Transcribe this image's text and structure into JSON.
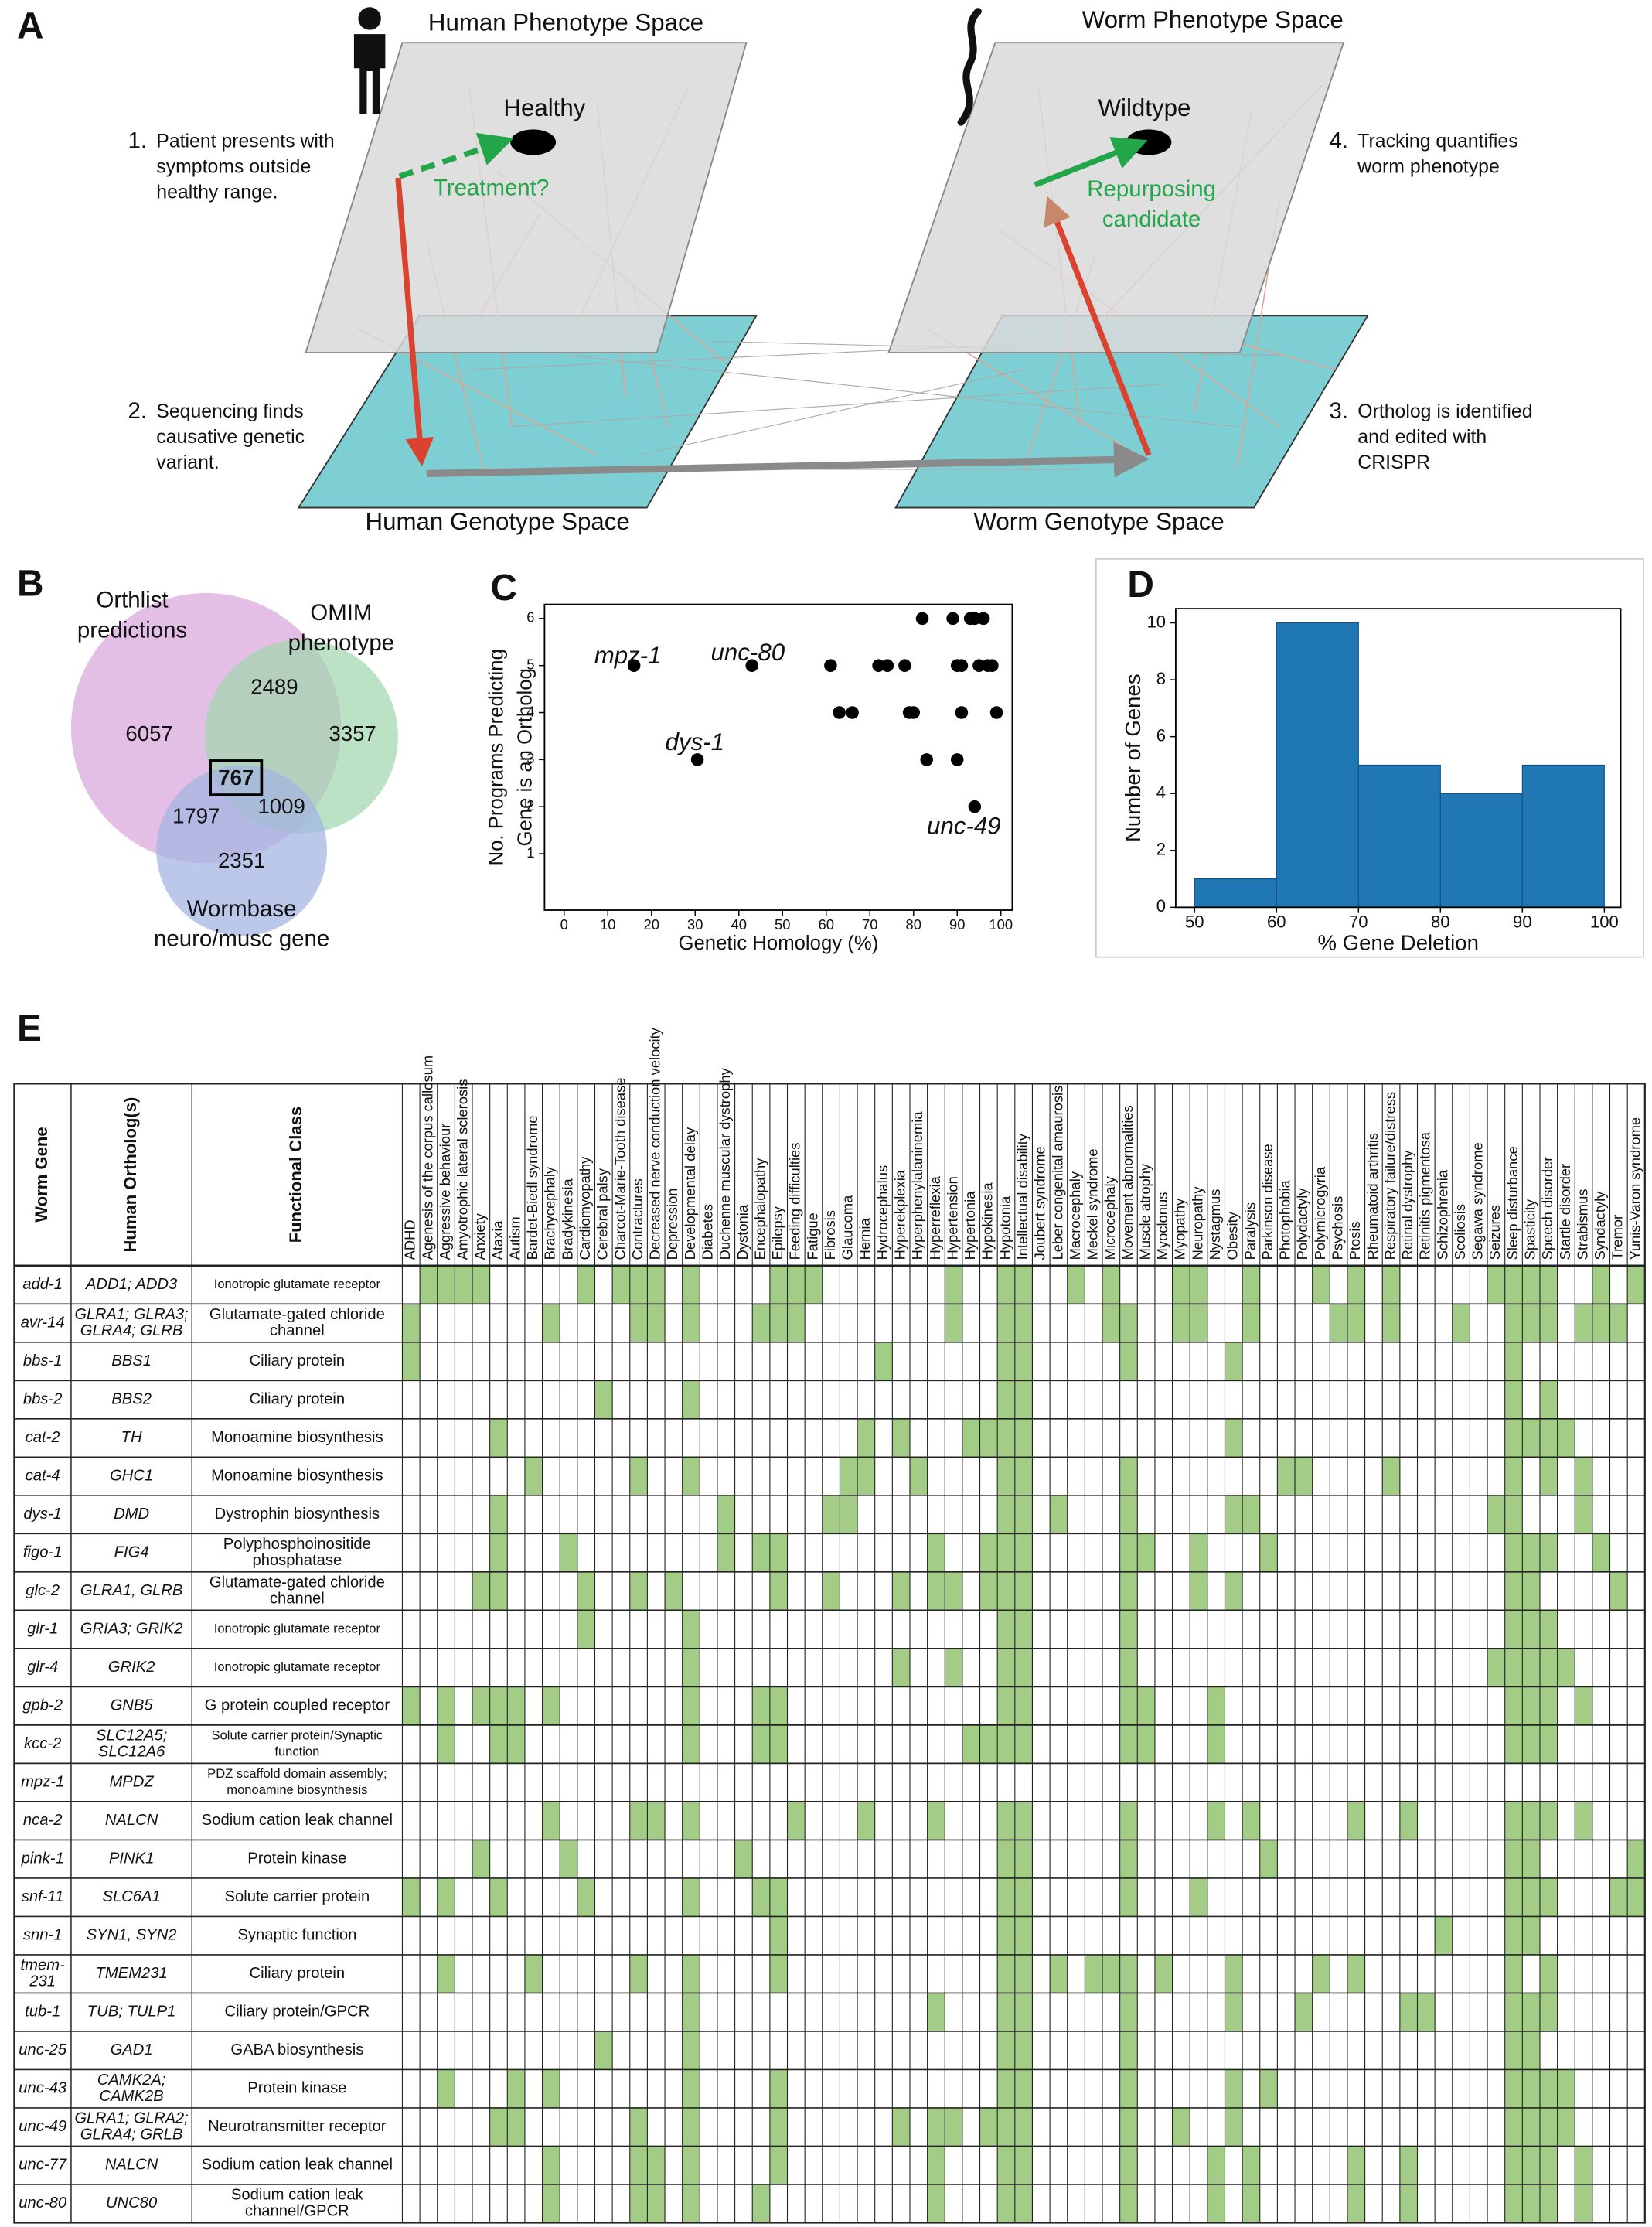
{
  "panel_labels": [
    "A",
    "B",
    "C",
    "D",
    "E"
  ],
  "panel_a": {
    "human_phenotype_space": "Human Phenotype Space",
    "worm_phenotype_space": "Worm Phenotype Space",
    "healthy": "Healthy",
    "wildtype": "Wildtype",
    "treatment": "Treatment?",
    "repurposing": [
      "Repurposing",
      "candidate"
    ],
    "human_genotype_space": "Human Genotype Space",
    "worm_genotype_space": "Worm Genotype Space",
    "steps": [
      {
        "number": "1.",
        "lines": [
          "Patient presents with",
          "symptoms outside",
          "healthy range."
        ]
      },
      {
        "number": "2.",
        "lines": [
          "Sequencing finds",
          "causative genetic",
          "variant."
        ]
      },
      {
        "number": "3.",
        "lines": [
          "Ortholog is identified",
          "and edited with",
          "CRISPR"
        ]
      },
      {
        "number": "4.",
        "lines": [
          "Tracking quantifies",
          "worm phenotype"
        ]
      }
    ]
  },
  "venn": {
    "sets": [
      {
        "label": [
          "Orthlist",
          "predictions"
        ]
      },
      {
        "label": [
          "OMIM",
          "phenotype"
        ]
      },
      {
        "label": [
          "Wormbase",
          "neuro/musc gene"
        ]
      }
    ],
    "regions": [
      6057,
      2489,
      3357,
      767,
      1797,
      1009,
      2351
    ]
  },
  "chart_data": [
    {
      "type": "scatter",
      "xlabel": "Genetic Homology (%)",
      "ylabel": [
        "No. Programs Predicting",
        "Gene is an Ortholog"
      ],
      "x": [
        16,
        30.5,
        43,
        61,
        63,
        66,
        72,
        74,
        78,
        79,
        80,
        82,
        83,
        89,
        90,
        90,
        91,
        91,
        93,
        94,
        94,
        95,
        96,
        97,
        98,
        99
      ],
      "values": [
        5,
        3,
        5,
        5,
        4,
        4,
        5,
        5,
        5,
        4,
        4,
        6,
        3,
        6,
        3,
        5,
        4,
        5,
        6,
        6,
        2,
        5,
        6,
        5,
        5,
        4
      ],
      "color": "#000000",
      "annotations": [
        "mpz-1",
        "unc-80",
        "dys-1",
        "unc-49"
      ],
      "xlim": [
        -4.5,
        102.6
      ],
      "ylim": [
        -0.2,
        6.3
      ],
      "xticks": [
        0,
        10,
        20,
        30,
        40,
        50,
        60,
        70,
        80,
        90,
        100
      ],
      "yticks": [
        1,
        2,
        3,
        4,
        5,
        6
      ]
    },
    {
      "type": "histogram",
      "xlabel": "% Gene Deletion",
      "ylabel": "Number of Genes",
      "bins": [
        50,
        60,
        70,
        80,
        90,
        100
      ],
      "values": [
        1,
        10,
        5,
        4,
        5
      ],
      "color": "#1f77b4",
      "xlim": [
        47.7,
        102
      ],
      "ylim": [
        0,
        10.5
      ],
      "xticks": [
        50,
        60,
        70,
        80,
        90,
        100
      ],
      "yticks": [
        0,
        2,
        4,
        6,
        8,
        10
      ]
    }
  ],
  "table": {
    "headers": [
      "Worm Gene",
      "Human Ortholog(s)",
      "Functional Class"
    ],
    "cell_color": "#a3cc86",
    "phenotypes": [
      "ADHD",
      "Agenesis of the corpus callosum",
      "Aggressive behaviour",
      "Amyotrophic lateral sclerosis",
      "Anxiety",
      "Ataxia",
      "Autism",
      "Bardet-Biedl syndrome",
      "Brachycephaly",
      "Bradykinesia",
      "Cardiomyopathy",
      "Cerebral palsy",
      "Charcot-Marie-Tooth disease",
      "Contractures",
      "Decreased nerve conduction velocity",
      "Depression",
      "Developmental delay",
      "Diabetes",
      "Duchenne muscular dystrophy",
      "Dystonia",
      "Encephalopathy",
      "Epilepsy",
      "Feeding difficulties",
      "Fatigue",
      "Fibrosis",
      "Glaucoma",
      "Hernia",
      "Hydrocephalus",
      "Hyperekplexia",
      "Hyperphenylalaninemia",
      "Hyperreflexia",
      "Hypertension",
      "Hypertonia",
      "Hypokinesia",
      "Hypotonia",
      "Intellectual disability",
      "Joubert syndrome",
      "Leber congenital amaurosis",
      "Macrocephaly",
      "Meckel syndrome",
      "Microcephaly",
      "Movement abnormalities",
      "Muscle atrophy",
      "Myoclonus",
      "Myopathy",
      "Neuropathy",
      "Nystagmus",
      "Obesity",
      "Paralysis",
      "Parkinson disease",
      "Photophobia",
      "Polydactyly",
      "Polymicrogyria",
      "Psychosis",
      "Ptosis",
      "Rheumatoid arthritis",
      "Respiratory failure/distress",
      "Retinal dystrophy",
      "Retinitis pigmentosa",
      "Schizophrenia",
      "Scoliosis",
      "Segawa syndrome",
      "Seizures",
      "Sleep disturbance",
      "Spasticity",
      "Speech disorder",
      "Startle disorder",
      "Strabismus",
      "Syndactyly",
      "Tremor",
      "Yunis-Varon syndrome"
    ],
    "rows": [
      {
        "gene": [
          "add-1"
        ],
        "orthologs": [
          "ADD1; ADD3"
        ],
        "class": [
          "Ionotropic glutamate receptor"
        ],
        "hits": [
          1,
          2,
          3,
          4,
          10,
          12,
          13,
          14,
          16,
          21,
          22,
          23,
          31,
          34,
          35,
          38,
          40,
          44,
          45,
          48,
          52,
          54,
          56,
          62,
          63,
          64,
          65,
          68,
          70
        ]
      },
      {
        "gene": [
          "avr-14"
        ],
        "orthologs": [
          "GLRA1; GLRA3;",
          "GLRA4; GLRB"
        ],
        "class": [
          "Glutamate-gated chloride",
          "channel"
        ],
        "hits": [
          0,
          8,
          13,
          14,
          16,
          20,
          21,
          22,
          31,
          34,
          35,
          40,
          41,
          44,
          45,
          48,
          53,
          54,
          56,
          60,
          63,
          64,
          65,
          67,
          68,
          69
        ]
      },
      {
        "gene": [
          "bbs-1"
        ],
        "orthologs": [
          "BBS1"
        ],
        "class": [
          "Ciliary protein"
        ],
        "hits": [
          0,
          27,
          34,
          35,
          41,
          47,
          63
        ]
      },
      {
        "gene": [
          "bbs-2"
        ],
        "orthologs": [
          "BBS2"
        ],
        "class": [
          "Ciliary protein"
        ],
        "hits": [
          11,
          16,
          34,
          35,
          63,
          65
        ]
      },
      {
        "gene": [
          "cat-2"
        ],
        "orthologs": [
          "TH"
        ],
        "class": [
          "Monoamine biosynthesis"
        ],
        "hits": [
          5,
          26,
          28,
          32,
          33,
          34,
          35,
          47,
          63,
          64,
          65,
          66
        ]
      },
      {
        "gene": [
          "cat-4"
        ],
        "orthologs": [
          "GHC1"
        ],
        "class": [
          "Monoamine biosynthesis"
        ],
        "hits": [
          7,
          13,
          16,
          25,
          26,
          29,
          34,
          35,
          41,
          50,
          51,
          56,
          63,
          65,
          67
        ]
      },
      {
        "gene": [
          "dys-1"
        ],
        "orthologs": [
          "DMD"
        ],
        "class": [
          "Dystrophin biosynthesis"
        ],
        "hits": [
          5,
          18,
          24,
          25,
          34,
          35,
          37,
          41,
          47,
          48,
          62,
          63,
          67
        ]
      },
      {
        "gene": [
          "figo-1"
        ],
        "orthologs": [
          "FIG4"
        ],
        "class": [
          "Polyphosphoinositide",
          "phosphatase"
        ],
        "hits": [
          5,
          9,
          18,
          20,
          21,
          30,
          33,
          34,
          35,
          41,
          42,
          45,
          49,
          63,
          64,
          65,
          68
        ]
      },
      {
        "gene": [
          "glc-2"
        ],
        "orthologs": [
          "GLRA1, GLRB"
        ],
        "class": [
          "Glutamate-gated chloride",
          "channel"
        ],
        "hits": [
          4,
          5,
          10,
          13,
          15,
          21,
          24,
          28,
          30,
          31,
          33,
          34,
          35,
          41,
          45,
          47,
          63,
          64,
          69
        ]
      },
      {
        "gene": [
          "glr-1"
        ],
        "orthologs": [
          "GRIA3; GRIK2"
        ],
        "class": [
          "Ionotropic glutamate receptor"
        ],
        "hits": [
          10,
          16,
          34,
          35,
          41,
          63,
          64,
          65
        ]
      },
      {
        "gene": [
          "glr-4"
        ],
        "orthologs": [
          "GRIK2"
        ],
        "class": [
          "Ionotropic glutamate receptor"
        ],
        "hits": [
          16,
          28,
          31,
          34,
          35,
          41,
          62,
          63,
          64,
          65,
          66
        ]
      },
      {
        "gene": [
          "gpb-2"
        ],
        "orthologs": [
          "GNB5"
        ],
        "class": [
          "G protein coupled receptor"
        ],
        "hits": [
          0,
          2,
          4,
          5,
          6,
          8,
          16,
          20,
          21,
          34,
          35,
          41,
          42,
          46,
          63,
          64,
          65,
          67
        ]
      },
      {
        "gene": [
          "kcc-2"
        ],
        "orthologs": [
          "SLC12A5;",
          "SLC12A6"
        ],
        "class": [
          "Solute carrier protein/Synaptic",
          "function"
        ],
        "hits": [
          2,
          5,
          6,
          16,
          20,
          21,
          32,
          33,
          34,
          35,
          41,
          42,
          46,
          63,
          64,
          65
        ]
      },
      {
        "gene": [
          "mpz-1"
        ],
        "orthologs": [
          "MPDZ"
        ],
        "class": [
          "PDZ scaffold domain assembly;",
          "monoamine biosynthesis"
        ],
        "hits": []
      },
      {
        "gene": [
          "nca-2"
        ],
        "orthologs": [
          "NALCN"
        ],
        "class": [
          "Sodium cation leak channel"
        ],
        "hits": [
          8,
          13,
          14,
          16,
          22,
          26,
          30,
          34,
          35,
          41,
          46,
          48,
          54,
          57,
          63,
          64,
          65,
          67
        ]
      },
      {
        "gene": [
          "pink-1"
        ],
        "orthologs": [
          "PINK1"
        ],
        "class": [
          "Protein kinase"
        ],
        "hits": [
          4,
          9,
          19,
          34,
          35,
          41,
          49,
          63,
          64,
          70
        ]
      },
      {
        "gene": [
          "snf-11"
        ],
        "orthologs": [
          "SLC6A1"
        ],
        "class": [
          "Solute carrier protein"
        ],
        "hits": [
          0,
          2,
          5,
          10,
          16,
          20,
          21,
          34,
          35,
          41,
          45,
          63,
          64,
          65,
          69,
          70
        ]
      },
      {
        "gene": [
          "snn-1"
        ],
        "orthologs": [
          "SYN1, SYN2"
        ],
        "class": [
          "Synaptic function"
        ],
        "hits": [
          21,
          34,
          35,
          59,
          63,
          64
        ]
      },
      {
        "gene": [
          "tmem-",
          "231"
        ],
        "orthologs": [
          "TMEM231"
        ],
        "class": [
          "Ciliary protein"
        ],
        "hits": [
          2,
          7,
          13,
          16,
          21,
          34,
          35,
          37,
          39,
          40,
          41,
          43,
          47,
          52,
          54,
          63,
          65
        ]
      },
      {
        "gene": [
          "tub-1"
        ],
        "orthologs": [
          "TUB; TULP1"
        ],
        "class": [
          "Ciliary protein/GPCR"
        ],
        "hits": [
          16,
          30,
          34,
          35,
          41,
          47,
          51,
          57,
          58,
          63,
          64,
          65
        ]
      },
      {
        "gene": [
          "unc-25"
        ],
        "orthologs": [
          "GAD1"
        ],
        "class": [
          "GABA biosynthesis"
        ],
        "hits": [
          11,
          16,
          34,
          35,
          41,
          63,
          64
        ]
      },
      {
        "gene": [
          "unc-43"
        ],
        "orthologs": [
          "CAMK2A;",
          "CAMK2B"
        ],
        "class": [
          "Protein kinase"
        ],
        "hits": [
          2,
          6,
          8,
          16,
          21,
          34,
          35,
          41,
          47,
          49,
          63,
          64,
          65,
          66
        ]
      },
      {
        "gene": [
          "unc-49"
        ],
        "orthologs": [
          "GLRA1; GLRA2;",
          "GLRA4; GRLB"
        ],
        "class": [
          "Neurotransmitter receptor"
        ],
        "hits": [
          5,
          6,
          13,
          16,
          21,
          28,
          30,
          31,
          33,
          34,
          35,
          41,
          44,
          47,
          63,
          64,
          65,
          66
        ]
      },
      {
        "gene": [
          "unc-77"
        ],
        "orthologs": [
          "NALCN"
        ],
        "class": [
          "Sodium cation leak channel"
        ],
        "hits": [
          8,
          13,
          14,
          16,
          21,
          30,
          34,
          35,
          41,
          46,
          48,
          54,
          57,
          63,
          64,
          65,
          67
        ]
      },
      {
        "gene": [
          "unc-80"
        ],
        "orthologs": [
          "UNC80"
        ],
        "class": [
          "Sodium cation leak",
          "channel/GPCR"
        ],
        "hits": [
          8,
          13,
          14,
          16,
          20,
          30,
          34,
          35,
          41,
          46,
          48,
          54,
          57,
          63,
          64,
          65,
          67
        ]
      }
    ]
  }
}
